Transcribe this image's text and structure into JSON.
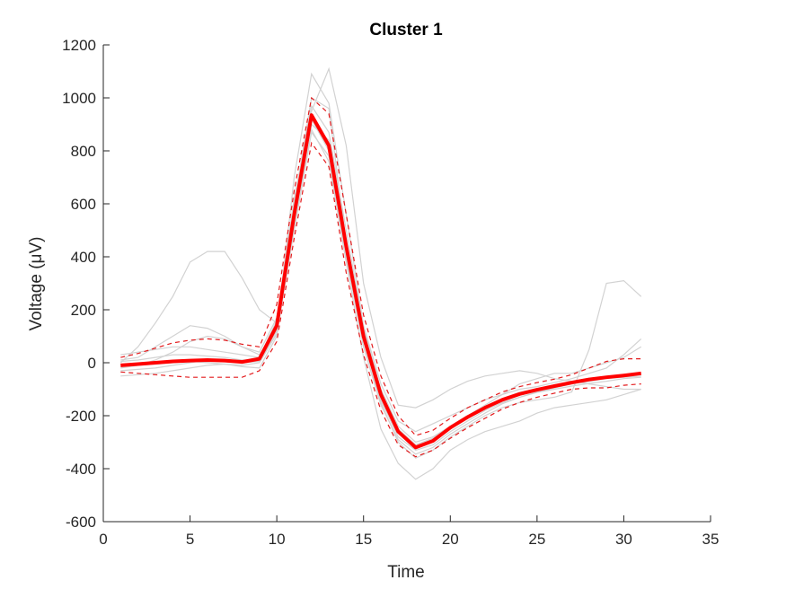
{
  "chart_data": {
    "type": "line",
    "title": "Cluster 1",
    "xlabel": "Time",
    "ylabel": "Voltage (μV)",
    "xlim": [
      0,
      35
    ],
    "ylim": [
      -600,
      1200
    ],
    "x_ticks": [
      "0",
      "5",
      "10",
      "15",
      "20",
      "25",
      "30",
      "35"
    ],
    "y_ticks": [
      "-600",
      "-400",
      "-200",
      "0",
      "200",
      "400",
      "600",
      "800",
      "1000",
      "1200"
    ],
    "x": [
      1,
      2,
      3,
      4,
      5,
      6,
      7,
      8,
      9,
      10,
      11,
      12,
      13,
      14,
      15,
      16,
      17,
      18,
      19,
      20,
      21,
      22,
      23,
      24,
      25,
      26,
      27,
      28,
      29,
      30,
      31
    ],
    "grid": false,
    "legend": "none",
    "colors": {
      "mean": "#ff0000",
      "band": "#e31a1c",
      "traces": "#d2d2d2",
      "axis": "#262626"
    },
    "series": [
      {
        "role": "mean",
        "values": [
          -10,
          -5,
          0,
          5,
          8,
          10,
          8,
          3,
          15,
          140,
          560,
          935,
          820,
          440,
          100,
          -120,
          -260,
          -320,
          -295,
          -245,
          -205,
          -170,
          -140,
          -118,
          -102,
          -88,
          -75,
          -63,
          -55,
          -48,
          -40
        ]
      },
      {
        "role": "mean-plus-std",
        "values": [
          20,
          35,
          55,
          75,
          85,
          90,
          85,
          70,
          60,
          220,
          650,
          1000,
          940,
          560,
          180,
          -50,
          -200,
          -275,
          -255,
          -210,
          -170,
          -140,
          -110,
          -90,
          -75,
          -62,
          -45,
          -20,
          5,
          15,
          15
        ]
      },
      {
        "role": "mean-minus-std",
        "values": [
          -35,
          -40,
          -45,
          -50,
          -55,
          -55,
          -55,
          -55,
          -30,
          80,
          470,
          830,
          740,
          340,
          30,
          -180,
          -310,
          -355,
          -330,
          -285,
          -245,
          -210,
          -175,
          -150,
          -130,
          -115,
          -100,
          -95,
          -95,
          -85,
          -80
        ]
      },
      {
        "role": "trace",
        "values": [
          0,
          60,
          150,
          250,
          380,
          420,
          420,
          320,
          200,
          150,
          600,
          1000,
          960,
          450,
          60,
          -150,
          -300,
          -360,
          -330,
          -280,
          -240,
          -200,
          -170,
          -150,
          -140,
          -130,
          -110,
          50,
          300,
          310,
          250
        ]
      },
      {
        "role": "trace",
        "values": [
          -20,
          -10,
          10,
          40,
          80,
          100,
          90,
          60,
          30,
          120,
          700,
          1090,
          980,
          560,
          140,
          -80,
          -220,
          -260,
          -230,
          -200,
          -170,
          -140,
          -120,
          -100,
          -90,
          -75,
          -60,
          -40,
          -20,
          30,
          90
        ]
      },
      {
        "role": "trace",
        "values": [
          10,
          20,
          60,
          100,
          140,
          130,
          100,
          60,
          40,
          170,
          620,
          950,
          1110,
          820,
          300,
          20,
          -160,
          -170,
          -140,
          -100,
          -70,
          -50,
          -40,
          -30,
          -40,
          -60,
          -70,
          -80,
          -90,
          -100,
          -100
        ]
      },
      {
        "role": "trace",
        "values": [
          -50,
          -45,
          -40,
          -30,
          -20,
          -10,
          -5,
          -15,
          -20,
          100,
          520,
          880,
          760,
          380,
          20,
          -250,
          -380,
          -440,
          -400,
          -330,
          -290,
          -260,
          -240,
          -220,
          -190,
          -170,
          -160,
          -150,
          -140,
          -120,
          -100
        ]
      },
      {
        "role": "trace",
        "values": [
          30,
          40,
          50,
          60,
          60,
          50,
          40,
          30,
          20,
          160,
          600,
          970,
          870,
          500,
          130,
          -100,
          -240,
          -300,
          -280,
          -240,
          -200,
          -160,
          -120,
          -80,
          -60,
          -40,
          -40,
          -20,
          0,
          20,
          60
        ]
      },
      {
        "role": "trace",
        "values": [
          -30,
          -25,
          -20,
          -10,
          0,
          10,
          10,
          0,
          5,
          120,
          540,
          920,
          800,
          420,
          80,
          -140,
          -280,
          -330,
          -310,
          -260,
          -220,
          -180,
          -150,
          -130,
          -110,
          -95,
          -80,
          -70,
          -60,
          -55,
          -50
        ]
      },
      {
        "role": "trace",
        "values": [
          5,
          10,
          20,
          30,
          30,
          25,
          20,
          10,
          10,
          130,
          560,
          900,
          840,
          460,
          110,
          -110,
          -250,
          -310,
          -285,
          -240,
          -200,
          -165,
          -135,
          -112,
          -98,
          -85,
          -72,
          -60,
          -52,
          -45,
          -38
        ]
      },
      {
        "role": "trace",
        "values": [
          -15,
          -10,
          -5,
          0,
          5,
          0,
          -5,
          -10,
          0,
          110,
          500,
          870,
          780,
          400,
          60,
          -160,
          -290,
          -345,
          -320,
          -270,
          -230,
          -190,
          -155,
          -130,
          -112,
          -100,
          -88,
          -78,
          -70,
          -60,
          -55
        ]
      }
    ]
  }
}
